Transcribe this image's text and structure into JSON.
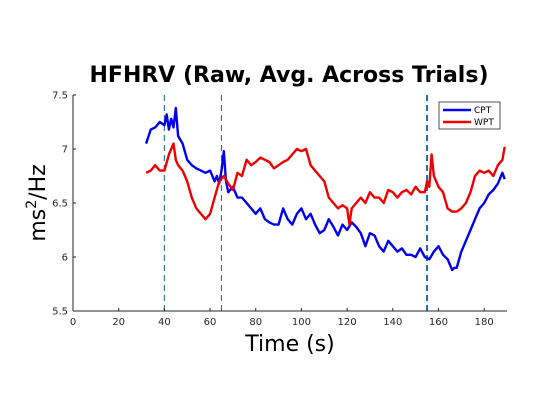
{
  "chart_data": {
    "type": "line",
    "title": "HFHRV (Raw, Avg. Across Trials)",
    "xlabel": "Time (s)",
    "ylabel_base": "ms",
    "ylabel_sup": "2",
    "ylabel_tail": "/Hz",
    "xlim": [
      0,
      190
    ],
    "ylim": [
      5.5,
      7.5
    ],
    "xticks": [
      0,
      20,
      40,
      60,
      80,
      100,
      120,
      140,
      160,
      180
    ],
    "yticks": [
      5.5,
      6,
      6.5,
      7,
      7.5
    ],
    "ytick_labels": [
      "5.5",
      "6",
      "6.5",
      "7",
      "7.5"
    ],
    "grid": false,
    "legend_position": "top-right",
    "vlines": [
      {
        "x": 40,
        "color": "#1f6fa8",
        "heavy": false
      },
      {
        "x": 65,
        "color": "#1f6fa8",
        "heavy": false
      },
      {
        "x": 155,
        "color": "#1f6fa8",
        "heavy": true
      }
    ],
    "series": [
      {
        "name": "CPT",
        "color": "#0000ee",
        "x": [
          32,
          34,
          36,
          38,
          40,
          41,
          42,
          43,
          44,
          45,
          46,
          48,
          50,
          52,
          54,
          56,
          58,
          60,
          62,
          63,
          64,
          65,
          66,
          67,
          68,
          70,
          72,
          74,
          76,
          78,
          80,
          82,
          84,
          86,
          88,
          90,
          92,
          94,
          96,
          98,
          100,
          102,
          104,
          106,
          108,
          110,
          112,
          114,
          116,
          118,
          120,
          122,
          124,
          126,
          128,
          130,
          132,
          134,
          136,
          138,
          140,
          142,
          144,
          146,
          148,
          150,
          152,
          154,
          156,
          158,
          160,
          162,
          164,
          166,
          167,
          168,
          170,
          172,
          174,
          176,
          178,
          180,
          182,
          184,
          186,
          188,
          189
        ],
        "y": [
          7.05,
          7.18,
          7.2,
          7.25,
          7.22,
          7.32,
          7.18,
          7.28,
          7.2,
          7.38,
          7.12,
          7.05,
          6.9,
          6.85,
          6.82,
          6.8,
          6.78,
          6.8,
          6.7,
          6.75,
          6.68,
          6.8,
          6.98,
          6.7,
          6.6,
          6.65,
          6.55,
          6.55,
          6.5,
          6.45,
          6.4,
          6.45,
          6.35,
          6.32,
          6.3,
          6.3,
          6.45,
          6.35,
          6.3,
          6.4,
          6.45,
          6.35,
          6.4,
          6.3,
          6.22,
          6.25,
          6.35,
          6.28,
          6.2,
          6.3,
          6.25,
          6.32,
          6.28,
          6.22,
          6.1,
          6.22,
          6.2,
          6.1,
          6.05,
          6.15,
          6.1,
          6.05,
          6.08,
          6.02,
          6.02,
          6.0,
          6.08,
          6.0,
          5.98,
          6.05,
          6.1,
          6.02,
          5.98,
          5.88,
          5.9,
          5.9,
          6.05,
          6.15,
          6.25,
          6.35,
          6.45,
          6.5,
          6.58,
          6.62,
          6.68,
          6.78,
          6.72
        ]
      },
      {
        "name": "WPT",
        "color": "#ee0000",
        "x": [
          32,
          34,
          36,
          38,
          40,
          42,
          44,
          45,
          46,
          48,
          50,
          52,
          54,
          56,
          58,
          60,
          62,
          64,
          66,
          68,
          70,
          72,
          74,
          76,
          78,
          80,
          82,
          84,
          86,
          88,
          90,
          92,
          94,
          96,
          98,
          100,
          102,
          104,
          106,
          108,
          110,
          112,
          114,
          116,
          118,
          120,
          121,
          122,
          124,
          126,
          128,
          130,
          132,
          134,
          136,
          138,
          140,
          142,
          144,
          146,
          148,
          150,
          152,
          154,
          155,
          156,
          157,
          158,
          160,
          162,
          164,
          166,
          168,
          170,
          172,
          174,
          176,
          178,
          180,
          182,
          184,
          186,
          188,
          189
        ],
        "y": [
          6.78,
          6.8,
          6.85,
          6.8,
          6.8,
          6.95,
          7.05,
          6.9,
          6.85,
          6.8,
          6.7,
          6.55,
          6.45,
          6.4,
          6.35,
          6.4,
          6.55,
          6.7,
          6.75,
          6.68,
          6.62,
          6.78,
          6.75,
          6.9,
          6.85,
          6.88,
          6.92,
          6.9,
          6.88,
          6.82,
          6.85,
          6.88,
          6.9,
          6.95,
          7.0,
          6.98,
          7.0,
          6.85,
          6.8,
          6.75,
          6.7,
          6.55,
          6.5,
          6.45,
          6.48,
          6.45,
          6.3,
          6.45,
          6.5,
          6.55,
          6.5,
          6.6,
          6.55,
          6.55,
          6.5,
          6.62,
          6.6,
          6.55,
          6.6,
          6.62,
          6.58,
          6.65,
          6.6,
          6.6,
          6.7,
          6.65,
          6.95,
          6.75,
          6.65,
          6.6,
          6.45,
          6.42,
          6.42,
          6.45,
          6.5,
          6.6,
          6.75,
          6.8,
          6.78,
          6.8,
          6.75,
          6.85,
          6.9,
          7.02
        ]
      }
    ]
  }
}
